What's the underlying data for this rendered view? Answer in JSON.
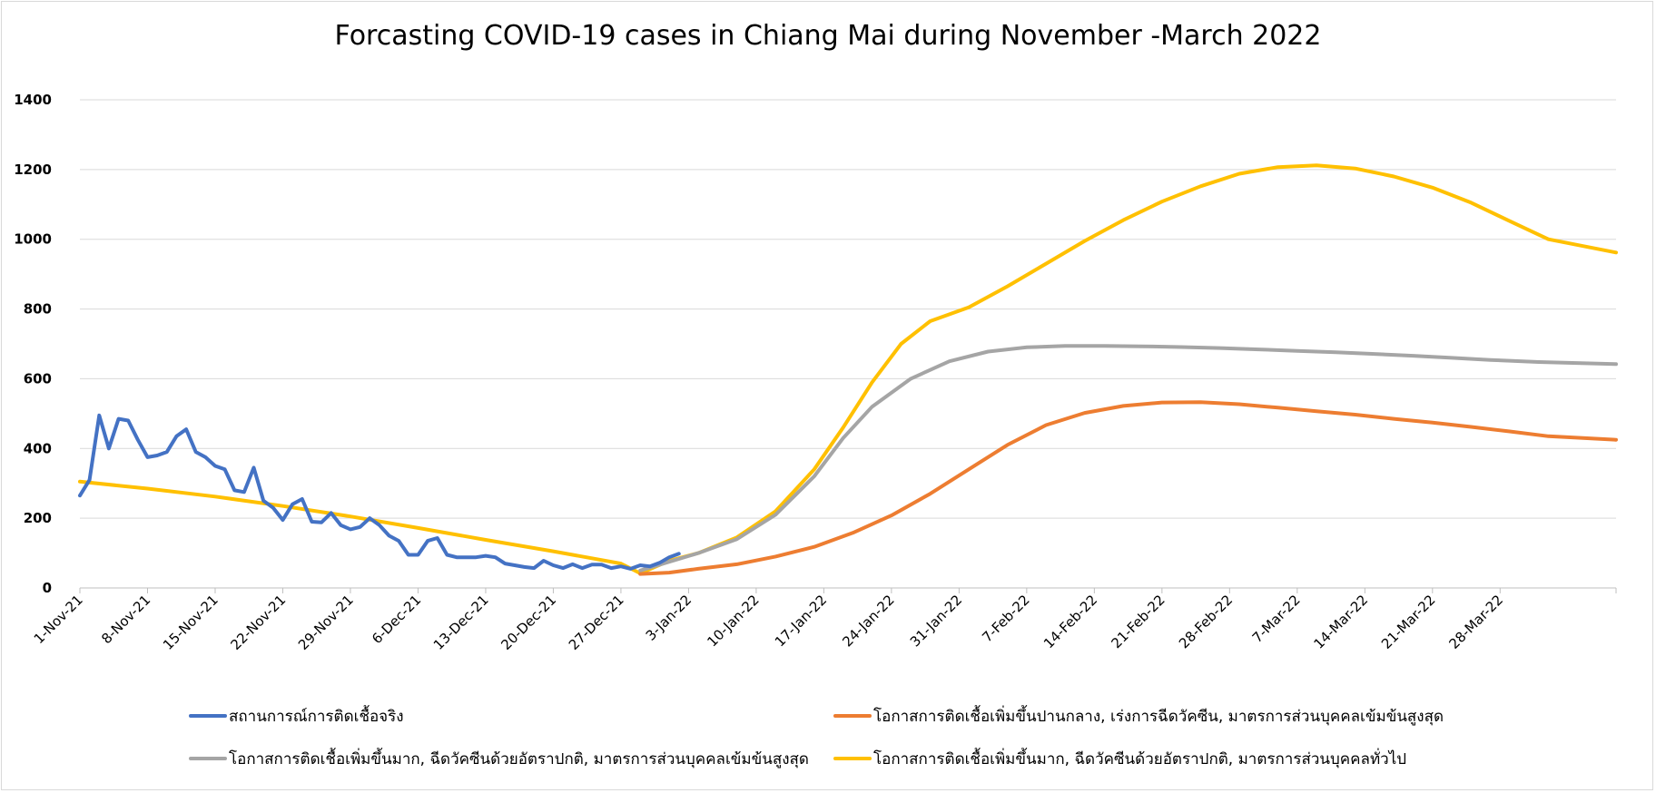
{
  "chart_data": {
    "type": "line",
    "title": "Forcasting COVID-19 cases in Chiang Mai during November -March 2022",
    "xlabel": "",
    "ylabel": "",
    "ylim": [
      0,
      1400
    ],
    "yticks": [
      0,
      200,
      400,
      600,
      800,
      1000,
      1200,
      1400
    ],
    "xlim": [
      "2021-11-01",
      "2022-04-09"
    ],
    "xtick_labels": [
      "1-Nov-21",
      "8-Nov-21",
      "15-Nov-21",
      "22-Nov-21",
      "29-Nov-21",
      "6-Dec-21",
      "13-Dec-21",
      "20-Dec-21",
      "27-Dec-21",
      "3-Jan-22",
      "10-Jan-22",
      "17-Jan-22",
      "24-Jan-22",
      "31-Jan-22",
      "7-Feb-22",
      "14-Feb-22",
      "21-Feb-22",
      "28-Feb-22",
      "7-Mar-22",
      "14-Mar-22",
      "21-Mar-22",
      "28-Mar-22"
    ],
    "grid": "horizontal",
    "legend_placement": "bottom",
    "series": [
      {
        "name": "สถานการณ์การติดเชื้อจริง",
        "color": "#4472c4",
        "points": [
          [
            "2021-11-01",
            265
          ],
          [
            "2021-11-02",
            310
          ],
          [
            "2021-11-03",
            495
          ],
          [
            "2021-11-04",
            400
          ],
          [
            "2021-11-05",
            485
          ],
          [
            "2021-11-06",
            480
          ],
          [
            "2021-11-07",
            425
          ],
          [
            "2021-11-08",
            375
          ],
          [
            "2021-11-09",
            380
          ],
          [
            "2021-11-10",
            390
          ],
          [
            "2021-11-11",
            435
          ],
          [
            "2021-11-12",
            455
          ],
          [
            "2021-11-13",
            390
          ],
          [
            "2021-11-14",
            375
          ],
          [
            "2021-11-15",
            350
          ],
          [
            "2021-11-16",
            340
          ],
          [
            "2021-11-17",
            280
          ],
          [
            "2021-11-18",
            275
          ],
          [
            "2021-11-19",
            345
          ],
          [
            "2021-11-20",
            250
          ],
          [
            "2021-11-21",
            230
          ],
          [
            "2021-11-22",
            195
          ],
          [
            "2021-11-23",
            240
          ],
          [
            "2021-11-24",
            255
          ],
          [
            "2021-11-25",
            190
          ],
          [
            "2021-11-26",
            188
          ],
          [
            "2021-11-27",
            215
          ],
          [
            "2021-11-28",
            180
          ],
          [
            "2021-11-29",
            168
          ],
          [
            "2021-11-30",
            175
          ],
          [
            "2021-12-01",
            200
          ],
          [
            "2021-12-02",
            180
          ],
          [
            "2021-12-03",
            150
          ],
          [
            "2021-12-04",
            135
          ],
          [
            "2021-12-05",
            95
          ],
          [
            "2021-12-06",
            95
          ],
          [
            "2021-12-07",
            135
          ],
          [
            "2021-12-08",
            143
          ],
          [
            "2021-12-09",
            95
          ],
          [
            "2021-12-10",
            88
          ],
          [
            "2021-12-11",
            88
          ],
          [
            "2021-12-12",
            88
          ],
          [
            "2021-12-13",
            92
          ],
          [
            "2021-12-14",
            88
          ],
          [
            "2021-12-15",
            70
          ],
          [
            "2021-12-16",
            65
          ],
          [
            "2021-12-17",
            60
          ],
          [
            "2021-12-18",
            57
          ],
          [
            "2021-12-19",
            78
          ],
          [
            "2021-12-20",
            65
          ],
          [
            "2021-12-21",
            57
          ],
          [
            "2021-12-22",
            68
          ],
          [
            "2021-12-23",
            57
          ],
          [
            "2021-12-24",
            67
          ],
          [
            "2021-12-25",
            67
          ],
          [
            "2021-12-26",
            57
          ],
          [
            "2021-12-27",
            62
          ],
          [
            "2021-12-28",
            55
          ],
          [
            "2021-12-29",
            65
          ],
          [
            "2021-12-30",
            62
          ],
          [
            "2021-12-31",
            72
          ],
          [
            "2022-01-01",
            88
          ],
          [
            "2022-01-02",
            98
          ]
        ]
      },
      {
        "name": "โอกาสการติดเชื้อเพิ่มขึ้นปานกลาง, เร่งการฉีดวัคซีน, มาตรการส่วนบุคคลเข้มข้นสูงสุด",
        "color": "#ed7d31",
        "points": [
          [
            "2021-12-29",
            40
          ],
          [
            "2022-01-01",
            44
          ],
          [
            "2022-01-04",
            55
          ],
          [
            "2022-01-08",
            68
          ],
          [
            "2022-01-12",
            90
          ],
          [
            "2022-01-16",
            118
          ],
          [
            "2022-01-20",
            158
          ],
          [
            "2022-01-24",
            208
          ],
          [
            "2022-01-28",
            270
          ],
          [
            "2022-02-01",
            340
          ],
          [
            "2022-02-05",
            410
          ],
          [
            "2022-02-09",
            467
          ],
          [
            "2022-02-13",
            502
          ],
          [
            "2022-02-17",
            522
          ],
          [
            "2022-02-21",
            532
          ],
          [
            "2022-02-25",
            533
          ],
          [
            "2022-03-01",
            527
          ],
          [
            "2022-03-05",
            517
          ],
          [
            "2022-03-09",
            507
          ],
          [
            "2022-03-13",
            497
          ],
          [
            "2022-03-17",
            485
          ],
          [
            "2022-03-21",
            474
          ],
          [
            "2022-03-25",
            462
          ],
          [
            "2022-03-29",
            449
          ],
          [
            "2022-04-02",
            435
          ],
          [
            "2022-04-09",
            425
          ]
        ]
      },
      {
        "name": "โอกาสการติดเชื้อเพิ่มขึ้นมาก, ฉีดวัคซีนด้วยอัตราปกติ, มาตรการส่วนบุคคลเข้มข้นสูงสุด",
        "color": "#a5a5a5",
        "points": [
          [
            "2021-12-29",
            50
          ],
          [
            "2022-01-01",
            75
          ],
          [
            "2022-01-04",
            100
          ],
          [
            "2022-01-08",
            140
          ],
          [
            "2022-01-12",
            210
          ],
          [
            "2022-01-16",
            320
          ],
          [
            "2022-01-19",
            430
          ],
          [
            "2022-01-22",
            520
          ],
          [
            "2022-01-26",
            600
          ],
          [
            "2022-01-30",
            650
          ],
          [
            "2022-02-03",
            678
          ],
          [
            "2022-02-07",
            690
          ],
          [
            "2022-02-11",
            694
          ],
          [
            "2022-02-15",
            694
          ],
          [
            "2022-02-19",
            693
          ],
          [
            "2022-02-23",
            691
          ],
          [
            "2022-02-27",
            688
          ],
          [
            "2022-03-03",
            684
          ],
          [
            "2022-03-07",
            680
          ],
          [
            "2022-03-11",
            676
          ],
          [
            "2022-03-15",
            671
          ],
          [
            "2022-03-19",
            666
          ],
          [
            "2022-03-23",
            660
          ],
          [
            "2022-03-27",
            654
          ],
          [
            "2022-04-01",
            648
          ],
          [
            "2022-04-09",
            642
          ]
        ]
      },
      {
        "name": "โอกาสการติดเชื้อเพิ่มขึ้นมาก, ฉีดวัคซีนด้วยอัตราปกติ, มาตรการส่วนบุคคลทั่วไป",
        "color": "#ffc000",
        "points": [
          [
            "2021-11-01",
            305
          ],
          [
            "2021-11-08",
            285
          ],
          [
            "2021-11-15",
            262
          ],
          [
            "2021-11-22",
            235
          ],
          [
            "2021-11-29",
            205
          ],
          [
            "2021-12-06",
            172
          ],
          [
            "2021-12-13",
            138
          ],
          [
            "2021-12-20",
            105
          ],
          [
            "2021-12-24",
            85
          ],
          [
            "2021-12-27",
            70
          ],
          [
            "2021-12-29",
            42
          ],
          [
            "2022-01-01",
            78
          ],
          [
            "2022-01-04",
            100
          ],
          [
            "2022-01-08",
            145
          ],
          [
            "2022-01-12",
            220
          ],
          [
            "2022-01-16",
            340
          ],
          [
            "2022-01-19",
            460
          ],
          [
            "2022-01-22",
            590
          ],
          [
            "2022-01-25",
            700
          ],
          [
            "2022-01-28",
            765
          ],
          [
            "2022-02-01",
            805
          ],
          [
            "2022-02-05",
            865
          ],
          [
            "2022-02-09",
            930
          ],
          [
            "2022-02-13",
            995
          ],
          [
            "2022-02-17",
            1055
          ],
          [
            "2022-02-21",
            1108
          ],
          [
            "2022-02-25",
            1152
          ],
          [
            "2022-03-01",
            1188
          ],
          [
            "2022-03-05",
            1207
          ],
          [
            "2022-03-09",
            1212
          ],
          [
            "2022-03-13",
            1203
          ],
          [
            "2022-03-17",
            1180
          ],
          [
            "2022-03-21",
            1148
          ],
          [
            "2022-03-25",
            1105
          ],
          [
            "2022-03-29",
            1052
          ],
          [
            "2022-04-02",
            1000
          ],
          [
            "2022-04-09",
            962
          ]
        ]
      }
    ]
  }
}
